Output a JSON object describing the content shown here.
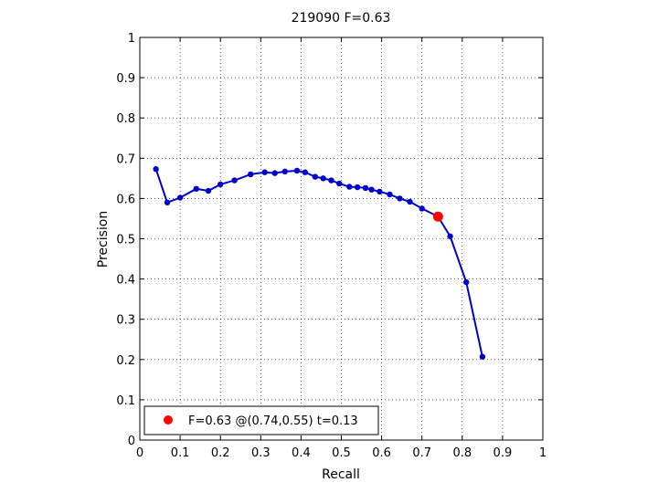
{
  "chart_data": {
    "type": "line",
    "title": "219090 F=0.63",
    "xlabel": "Recall",
    "ylabel": "Precision",
    "xlim": [
      0,
      1
    ],
    "ylim": [
      0,
      1
    ],
    "xticks": [
      "0",
      "0.1",
      "0.2",
      "0.3",
      "0.4",
      "0.5",
      "0.6",
      "0.7",
      "0.8",
      "0.9",
      "1"
    ],
    "yticks": [
      "0",
      "0.1",
      "0.2",
      "0.3",
      "0.4",
      "0.5",
      "0.6",
      "0.7",
      "0.8",
      "0.9",
      "1"
    ],
    "grid": true,
    "series": [
      {
        "color": "#0000cc",
        "x": [
          0.04,
          0.068,
          0.1,
          0.14,
          0.17,
          0.2,
          0.235,
          0.275,
          0.31,
          0.335,
          0.36,
          0.39,
          0.41,
          0.435,
          0.455,
          0.475,
          0.495,
          0.52,
          0.54,
          0.56,
          0.575,
          0.595,
          0.62,
          0.645,
          0.67,
          0.7,
          0.74,
          0.77,
          0.81,
          0.85
        ],
        "y": [
          0.673,
          0.59,
          0.602,
          0.624,
          0.619,
          0.635,
          0.645,
          0.66,
          0.665,
          0.663,
          0.667,
          0.669,
          0.665,
          0.654,
          0.65,
          0.645,
          0.637,
          0.629,
          0.628,
          0.626,
          0.622,
          0.617,
          0.61,
          0.6,
          0.592,
          0.575,
          0.555,
          0.506,
          0.392,
          0.207
        ]
      }
    ],
    "highlight": {
      "x": 0.74,
      "y": 0.555,
      "color": "#ff0000"
    },
    "legend": {
      "text": "F=0.63 @(0.74,0.55) t=0.13",
      "placement": "bottom-left"
    }
  }
}
